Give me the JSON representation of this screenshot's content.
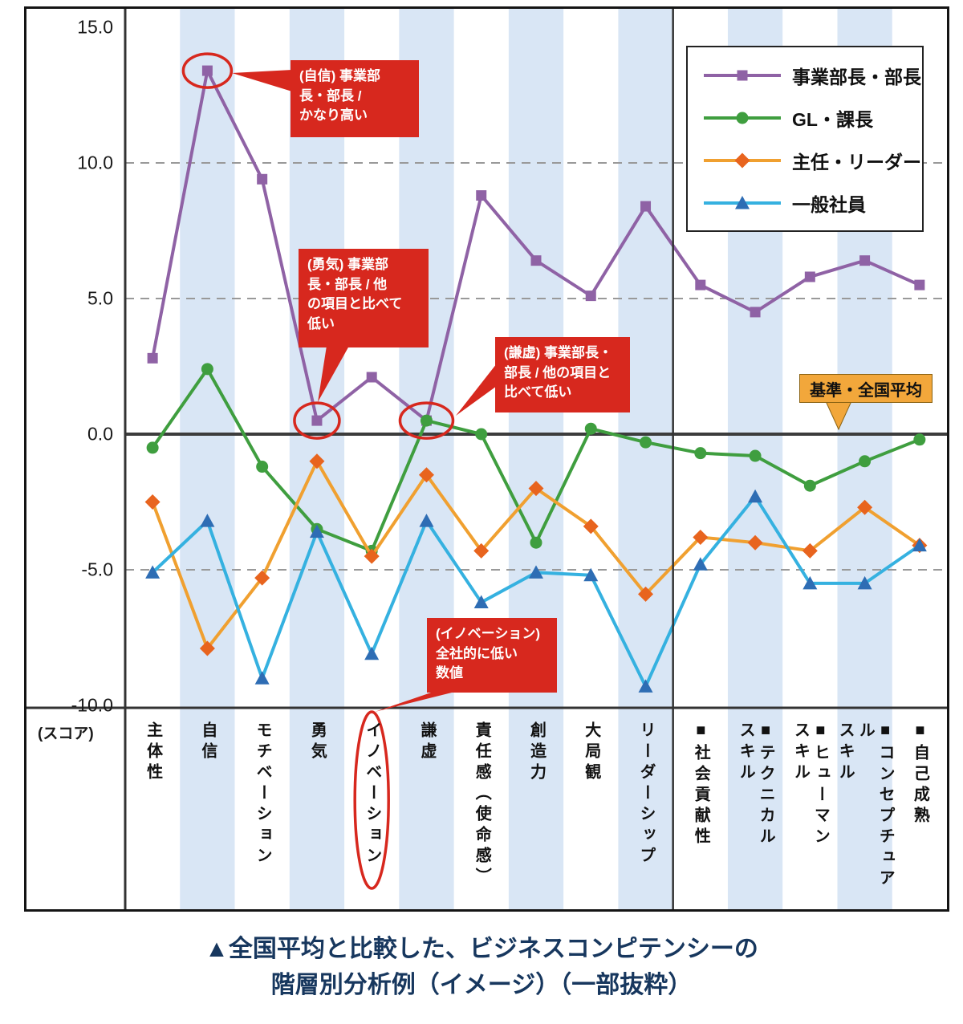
{
  "chart_data": {
    "type": "line",
    "title": "全国平均と比較した、ビジネスコンピテンシーの階層別分析例（イメージ）（一部抜粋）",
    "xlabel": "",
    "ylabel": "(スコア)",
    "ylim": [
      -10.5,
      15.5
    ],
    "yticks": [
      15.0,
      10.0,
      5.0,
      0.0,
      -5.0,
      -10.0
    ],
    "grid": "dashed horizontal at 10, 5, -5; bold baseline at 0",
    "legend_position": "top-right",
    "categories": [
      "主体性",
      "自信",
      "モチベーション",
      "勇気",
      "イノベーション",
      "謙虚",
      "責任感（使命感）",
      "創造力",
      "大局観",
      "リーダーシップ",
      "■社会貢献性",
      "■テクニカル\nスキル",
      "■ヒューマン\nスキル",
      "■コンセプチュアル\nスキル",
      "■自己成熟"
    ],
    "striped_category_indices": [
      1,
      3,
      5,
      7,
      9,
      11,
      13
    ],
    "section_divider_after_index": 9,
    "stripe_color": "#D9E6F5",
    "series": [
      {
        "name": "事業部長・部長",
        "marker": "square",
        "color": "#8F62A5",
        "values": [
          2.8,
          13.4,
          9.4,
          0.5,
          2.1,
          0.5,
          8.8,
          6.4,
          5.1,
          8.4,
          5.5,
          4.5,
          5.8,
          6.4,
          5.5
        ]
      },
      {
        "name": "GL・課長",
        "marker": "circle",
        "color": "#3F9E3F",
        "values": [
          -0.5,
          2.4,
          -1.2,
          -3.5,
          -4.3,
          0.5,
          0.0,
          -4.0,
          0.2,
          -0.3,
          -0.7,
          -0.8,
          -1.9,
          -1.0,
          -0.2
        ]
      },
      {
        "name": "主任・リーダー",
        "marker": "diamond",
        "color": "#F0A030",
        "marker_color": "#E8641E",
        "values": [
          -2.5,
          -7.9,
          -5.3,
          -1.0,
          -4.5,
          -1.5,
          -4.3,
          -2.0,
          -3.4,
          -5.9,
          -3.8,
          -4.0,
          -4.3,
          -2.7,
          -4.1
        ]
      },
      {
        "name": "一般社員",
        "marker": "triangle",
        "color": "#35B1E0",
        "marker_color": "#2E6DB4",
        "values": [
          -5.1,
          -3.2,
          -9.0,
          -3.6,
          -8.1,
          -3.2,
          -6.2,
          -5.1,
          -5.2,
          -9.3,
          -4.8,
          -2.3,
          -5.5,
          -5.5,
          -4.1
        ]
      }
    ]
  },
  "annotations": [
    {
      "id": "confidence",
      "text": "(自信) 事業部\n長・部長 /\nかなり高い"
    },
    {
      "id": "courage",
      "text": "(勇気) 事業部\n長・部長 / 他\nの項目と比べて\n低い"
    },
    {
      "id": "humility",
      "text": "(謙虚) 事業部長・\n部長 / 他の項目と\n比べて低い"
    },
    {
      "id": "innovation",
      "text": "(イノベーション)\n全社的に低い\n数値"
    }
  ],
  "reference_badge": {
    "label": "基準・全国平均"
  },
  "caption": {
    "line1": "▲全国平均と比較した、ビジネスコンピテンシーの",
    "line2": "階層別分析例（イメージ）（一部抜粋）"
  }
}
